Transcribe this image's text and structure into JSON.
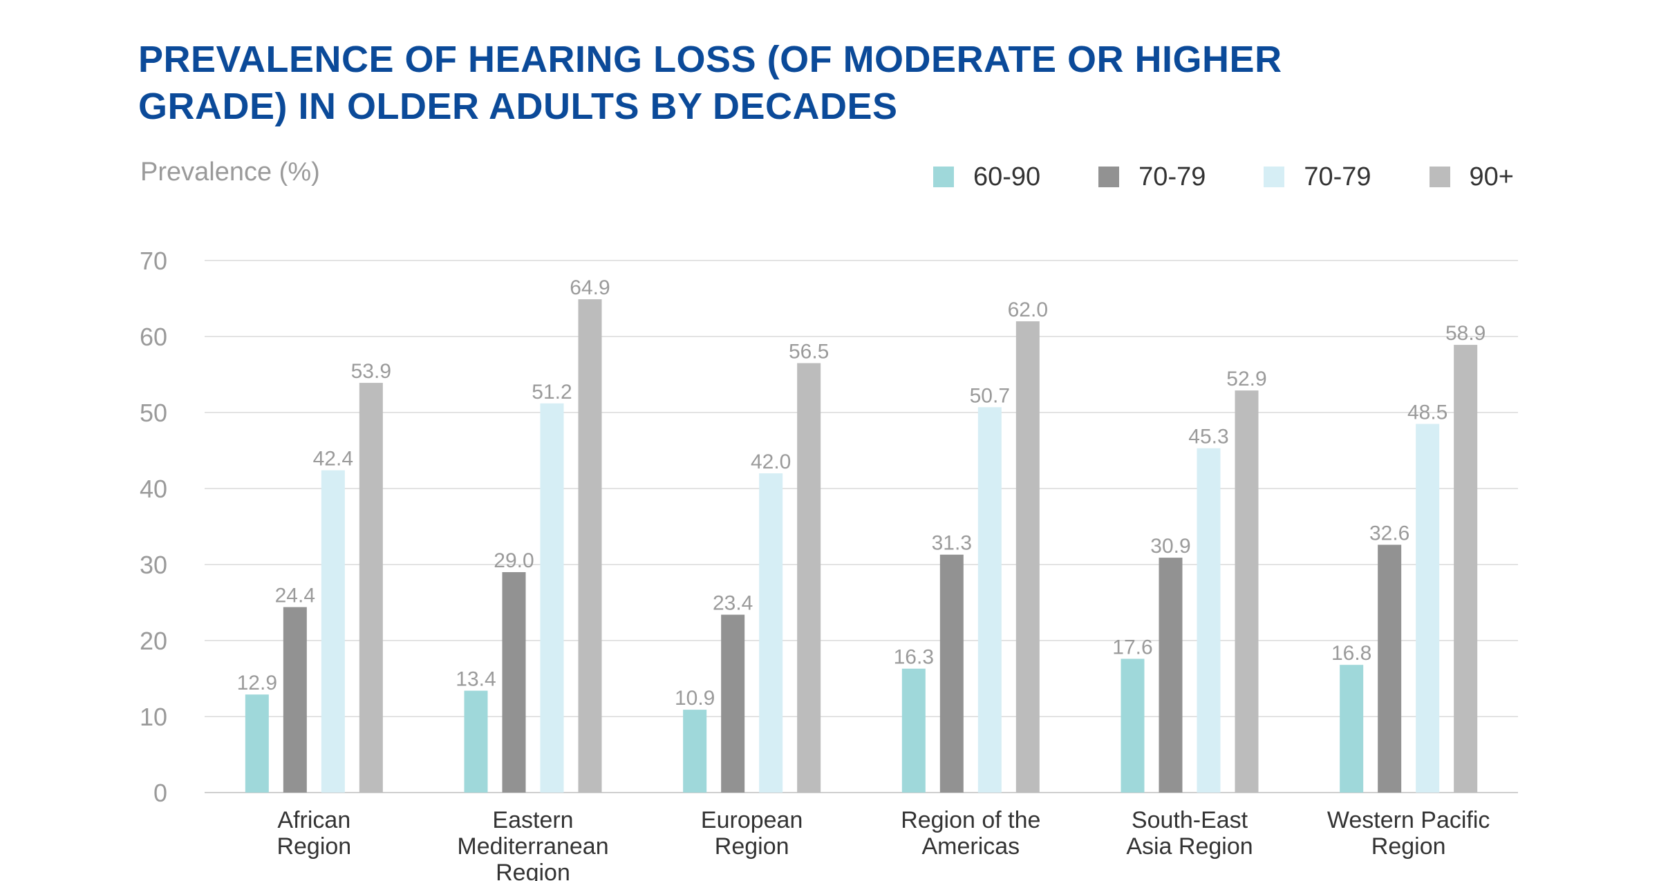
{
  "chart_data": {
    "type": "bar",
    "title_lines": [
      "PREVALENCE OF HEARING LOSS (OF MODERATE OR HIGHER",
      "GRADE) IN OLDER ADULTS BY DECADES"
    ],
    "title": "PREVALENCE OF HEARING LOSS (OF MODERATE OR HIGHER GRADE) IN OLDER ADULTS BY DECADES",
    "ylabel": "Prevalence (%)",
    "xlabel": "",
    "ylim": [
      0,
      70
    ],
    "yticks": [
      0,
      10,
      20,
      30,
      40,
      50,
      60,
      70
    ],
    "grid": true,
    "legend_position": "top-right",
    "categories": [
      [
        "African",
        "Region"
      ],
      [
        "Eastern",
        "Mediterranean",
        "Region"
      ],
      [
        "European",
        "Region"
      ],
      [
        "Region of the",
        "Americas"
      ],
      [
        "South-East",
        "Asia Region"
      ],
      [
        "Western Pacific",
        "Region"
      ]
    ],
    "series": [
      {
        "name": "60-90",
        "color": "#9fd8da",
        "values": [
          12.9,
          13.4,
          10.9,
          16.3,
          17.6,
          16.8
        ],
        "labels": [
          "12.9",
          "13.4",
          "10.9",
          "16.3",
          "17.6",
          "16.8"
        ]
      },
      {
        "name": "70-79",
        "color": "#929292",
        "values": [
          24.4,
          29.0,
          23.4,
          31.3,
          30.9,
          32.6
        ],
        "labels": [
          "24.4",
          "29.0",
          "23.4",
          "31.3",
          "30.9",
          "32.6"
        ]
      },
      {
        "name": "70-79",
        "color": "#d6eef5",
        "values": [
          42.4,
          51.2,
          42.0,
          50.7,
          45.3,
          48.5
        ],
        "labels": [
          "42.4",
          "51.2",
          "42.0",
          "50.7",
          "45.3",
          "48.5"
        ]
      },
      {
        "name": "90+",
        "color": "#bcbcbc",
        "values": [
          53.9,
          64.9,
          56.5,
          62.0,
          52.9,
          58.9
        ],
        "labels": [
          "53.9",
          "64.9",
          "56.5",
          "62.0",
          "52.9",
          "58.9"
        ]
      }
    ]
  }
}
